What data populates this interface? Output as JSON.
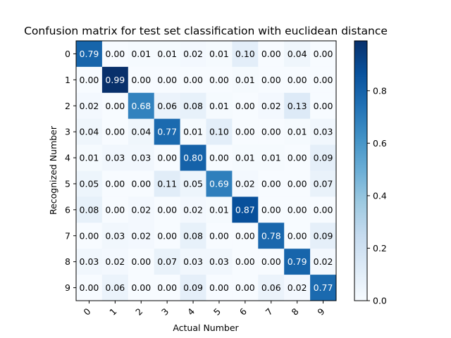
{
  "chart_data": {
    "type": "heatmap",
    "title": "Confusion matrix for test set classification with euclidean distance",
    "xlabel": "Actual Number",
    "ylabel": "Recognized Number",
    "x_categories": [
      "0",
      "1",
      "2",
      "3",
      "4",
      "5",
      "6",
      "7",
      "8",
      "9"
    ],
    "y_categories": [
      "0",
      "1",
      "2",
      "3",
      "4",
      "5",
      "6",
      "7",
      "8",
      "9"
    ],
    "values": [
      [
        0.79,
        0.0,
        0.01,
        0.01,
        0.02,
        0.01,
        0.1,
        0.0,
        0.04,
        0.0
      ],
      [
        0.0,
        0.99,
        0.0,
        0.0,
        0.0,
        0.0,
        0.01,
        0.0,
        0.0,
        0.0
      ],
      [
        0.02,
        0.0,
        0.68,
        0.06,
        0.08,
        0.01,
        0.0,
        0.02,
        0.13,
        0.0
      ],
      [
        0.04,
        0.0,
        0.04,
        0.77,
        0.01,
        0.1,
        0.0,
        0.0,
        0.01,
        0.03
      ],
      [
        0.01,
        0.03,
        0.03,
        0.0,
        0.8,
        0.0,
        0.01,
        0.01,
        0.0,
        0.09
      ],
      [
        0.05,
        0.0,
        0.0,
        0.11,
        0.05,
        0.69,
        0.02,
        0.0,
        0.0,
        0.07
      ],
      [
        0.08,
        0.0,
        0.02,
        0.0,
        0.02,
        0.01,
        0.87,
        0.0,
        0.0,
        0.0
      ],
      [
        0.0,
        0.03,
        0.02,
        0.0,
        0.08,
        0.0,
        0.0,
        0.78,
        0.0,
        0.09
      ],
      [
        0.03,
        0.02,
        0.0,
        0.07,
        0.03,
        0.03,
        0.0,
        0.0,
        0.79,
        0.02
      ],
      [
        0.0,
        0.06,
        0.0,
        0.0,
        0.09,
        0.0,
        0.0,
        0.06,
        0.02,
        0.77
      ]
    ],
    "color_range": [
      0,
      0.99
    ],
    "colormap": "Blues",
    "colorbar_ticks": [
      "0.0",
      "0.2",
      "0.4",
      "0.6",
      "0.8"
    ],
    "colorbar_tick_values": [
      0.0,
      0.2,
      0.4,
      0.6,
      0.8
    ],
    "grid": false,
    "legend": "colorbar-right"
  }
}
